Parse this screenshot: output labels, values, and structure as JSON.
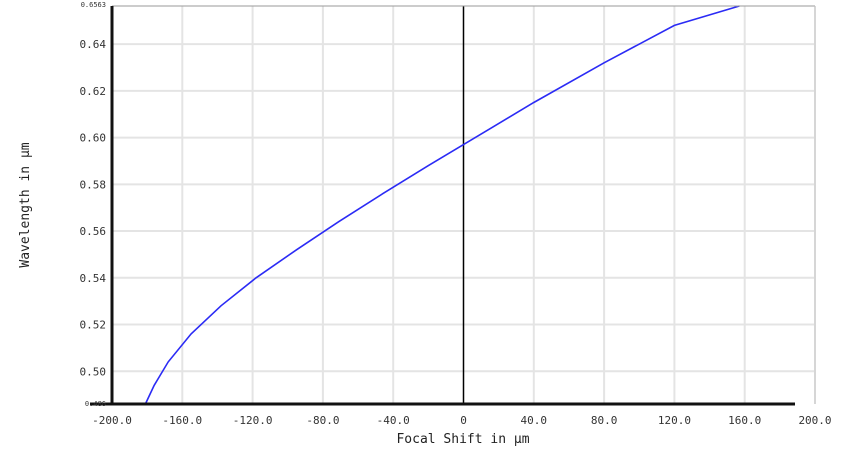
{
  "chart_data": {
    "type": "line",
    "xlabel": "Focal Shift in µm",
    "ylabel": "Wavelength in µm",
    "xlim": [
      -200,
      200
    ],
    "ylim": [
      0.486,
      0.6563
    ],
    "grid": true,
    "x_ticks": [
      {
        "value": -200,
        "label": "-200.0"
      },
      {
        "value": -160,
        "label": "-160.0"
      },
      {
        "value": -120,
        "label": "-120.0"
      },
      {
        "value": -80,
        "label": "-80.0"
      },
      {
        "value": -40,
        "label": "-40.0"
      },
      {
        "value": 0,
        "label": "0"
      },
      {
        "value": 40,
        "label": "40.0"
      },
      {
        "value": 80,
        "label": "80.0"
      },
      {
        "value": 120,
        "label": "120.0"
      },
      {
        "value": 160,
        "label": "160.0"
      },
      {
        "value": 200,
        "label": "200.0"
      }
    ],
    "y_ticks": [
      {
        "value": 0.5,
        "label": "0.50"
      },
      {
        "value": 0.52,
        "label": "0.52"
      },
      {
        "value": 0.54,
        "label": "0.54"
      },
      {
        "value": 0.56,
        "label": "0.56"
      },
      {
        "value": 0.58,
        "label": "0.58"
      },
      {
        "value": 0.6,
        "label": "0.60"
      },
      {
        "value": 0.62,
        "label": "0.62"
      },
      {
        "value": 0.64,
        "label": "0.64"
      }
    ],
    "y_range_labels": {
      "min": "0.486",
      "max": "0.6563"
    },
    "series": [
      {
        "color": "#2b2bf5",
        "points": [
          {
            "x": -181,
            "y": 0.486
          },
          {
            "x": -176,
            "y": 0.494
          },
          {
            "x": -168,
            "y": 0.504
          },
          {
            "x": -155,
            "y": 0.516
          },
          {
            "x": -138,
            "y": 0.528
          },
          {
            "x": -118,
            "y": 0.54
          },
          {
            "x": -95,
            "y": 0.552
          },
          {
            "x": -71,
            "y": 0.564
          },
          {
            "x": -46,
            "y": 0.576
          },
          {
            "x": -20,
            "y": 0.588
          },
          {
            "x": 0,
            "y": 0.597
          },
          {
            "x": 40,
            "y": 0.615
          },
          {
            "x": 80,
            "y": 0.632
          },
          {
            "x": 120,
            "y": 0.648
          },
          {
            "x": 157,
            "y": 0.6563
          }
        ]
      }
    ],
    "colors": {
      "frame": "#111111",
      "zero_line": "#000000",
      "grid": "#e4e4e4"
    }
  }
}
